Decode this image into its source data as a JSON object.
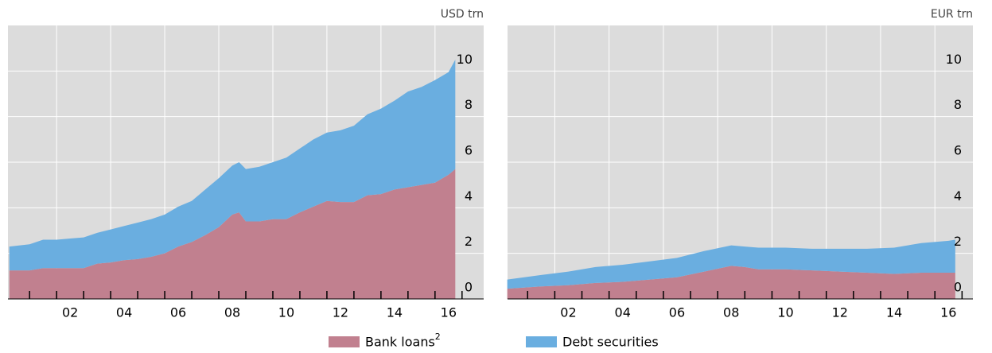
{
  "chart_data": [
    {
      "type": "stacked_area",
      "unit_label": "USD trn",
      "x": [
        2000.25,
        2001,
        2001.5,
        2002,
        2002.5,
        2003,
        2003.5,
        2004,
        2004.5,
        2005,
        2005.5,
        2006,
        2006.5,
        2007,
        2007.5,
        2008,
        2008.5,
        2008.75,
        2009,
        2009.5,
        2010,
        2010.5,
        2011,
        2011.5,
        2012,
        2012.5,
        2013,
        2013.5,
        2014,
        2014.5,
        2015,
        2015.5,
        2016,
        2016.5,
        2016.75
      ],
      "series": [
        {
          "name": "Bank loans",
          "name_superscript": "2",
          "color": "#c1808f",
          "values": [
            1.25,
            1.25,
            1.35,
            1.35,
            1.35,
            1.35,
            1.55,
            1.6,
            1.7,
            1.75,
            1.85,
            2.0,
            2.3,
            2.5,
            2.8,
            3.15,
            3.7,
            3.8,
            3.4,
            3.4,
            3.5,
            3.5,
            3.8,
            4.05,
            4.3,
            4.25,
            4.25,
            4.55,
            4.6,
            4.8,
            4.9,
            5.0,
            5.1,
            5.45,
            5.7
          ]
        },
        {
          "name": "Debt securities",
          "color": "#6aaee0",
          "values": [
            1.05,
            1.15,
            1.25,
            1.25,
            1.3,
            1.35,
            1.35,
            1.45,
            1.5,
            1.6,
            1.65,
            1.7,
            1.75,
            1.8,
            2.0,
            2.15,
            2.15,
            2.2,
            2.3,
            2.4,
            2.5,
            2.7,
            2.8,
            2.95,
            3.0,
            3.15,
            3.35,
            3.55,
            3.75,
            3.9,
            4.2,
            4.3,
            4.5,
            4.5,
            4.8
          ]
        }
      ],
      "xlim": [
        2000.2,
        2017.8
      ],
      "ylim": [
        0,
        12
      ],
      "xticks": [
        {
          "value": 2002,
          "label": "02"
        },
        {
          "value": 2004,
          "label": "04"
        },
        {
          "value": 2006,
          "label": "06"
        },
        {
          "value": 2008,
          "label": "08"
        },
        {
          "value": 2010,
          "label": "10"
        },
        {
          "value": 2012,
          "label": "12"
        },
        {
          "value": 2014,
          "label": "14"
        },
        {
          "value": 2016,
          "label": "16"
        }
      ],
      "xminor": [
        2001,
        2002,
        2003,
        2004,
        2005,
        2006,
        2007,
        2008,
        2009,
        2010,
        2011,
        2012,
        2013,
        2014,
        2015,
        2016,
        2017
      ],
      "yticks": [
        0,
        2,
        4,
        6,
        8,
        10
      ],
      "grid": true
    },
    {
      "type": "stacked_area",
      "unit_label": "EUR trn",
      "x": [
        2000.25,
        2001.5,
        2002.5,
        2003.5,
        2004.5,
        2005.5,
        2006.5,
        2007.5,
        2008.5,
        2009,
        2009.5,
        2010.5,
        2011.5,
        2012.5,
        2013.5,
        2014.5,
        2015.5,
        2016.5,
        2016.75
      ],
      "series": [
        {
          "color": "#c1808f",
          "values": [
            0.45,
            0.55,
            0.6,
            0.7,
            0.75,
            0.85,
            0.95,
            1.2,
            1.45,
            1.4,
            1.3,
            1.3,
            1.25,
            1.2,
            1.15,
            1.1,
            1.15,
            1.15,
            1.15
          ]
        },
        {
          "color": "#6aaee0",
          "values": [
            0.4,
            0.5,
            0.6,
            0.7,
            0.75,
            0.8,
            0.85,
            0.9,
            0.9,
            0.9,
            0.95,
            0.95,
            0.95,
            1.0,
            1.05,
            1.15,
            1.3,
            1.4,
            1.45
          ]
        }
      ],
      "xlim": [
        2000.26,
        2017.4
      ],
      "ylim": [
        0,
        12
      ],
      "xticks": [
        {
          "value": 2002,
          "label": "02"
        },
        {
          "value": 2004,
          "label": "04"
        },
        {
          "value": 2006,
          "label": "06"
        },
        {
          "value": 2008,
          "label": "08"
        },
        {
          "value": 2010,
          "label": "10"
        },
        {
          "value": 2012,
          "label": "12"
        },
        {
          "value": 2014,
          "label": "14"
        },
        {
          "value": 2016,
          "label": "16"
        }
      ],
      "xminor": [
        2001,
        2002,
        2003,
        2004,
        2005,
        2006,
        2007,
        2008,
        2009,
        2010,
        2011,
        2012,
        2013,
        2014,
        2015,
        2016,
        2017
      ],
      "yticks": [
        0,
        2,
        4,
        6,
        8,
        10
      ],
      "grid": true
    }
  ]
}
